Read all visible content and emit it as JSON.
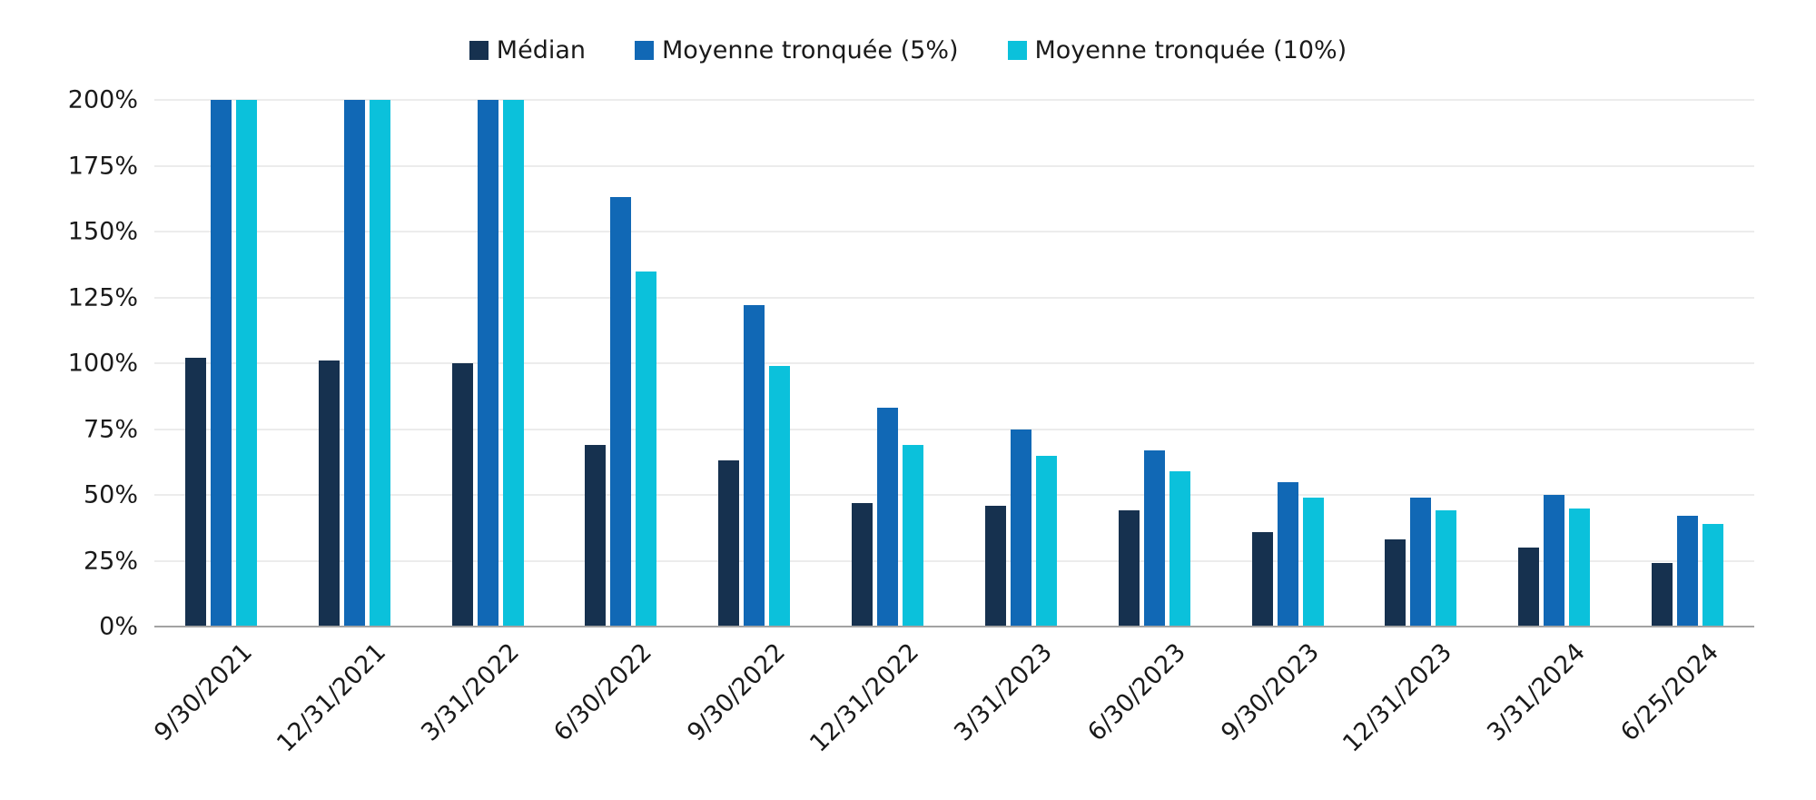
{
  "chart_data": {
    "type": "bar",
    "title": "",
    "xlabel": "",
    "ylabel": "",
    "ylim": [
      0,
      200
    ],
    "yticks": [
      0,
      25,
      50,
      75,
      100,
      125,
      150,
      175,
      200
    ],
    "ytick_suffix": "%",
    "grid": true,
    "legend_position": "top",
    "categories": [
      "9/30/2021",
      "12/31/2021",
      "3/31/2022",
      "6/30/2022",
      "9/30/2022",
      "12/31/2022",
      "3/31/2023",
      "6/30/2023",
      "9/30/2023",
      "12/31/2023",
      "3/31/2024",
      "6/25/2024"
    ],
    "series": [
      {
        "name": "Médian",
        "slug": "median",
        "color": "#16314F",
        "values": [
          102,
          101,
          100,
          69,
          63,
          47,
          46,
          44,
          36,
          33,
          30,
          24
        ]
      },
      {
        "name": "Moyenne tronquée (5%)",
        "slug": "moyenne-tronquee-5",
        "color": "#1168B5",
        "values": [
          200,
          200,
          200,
          163,
          122,
          83,
          75,
          67,
          55,
          49,
          50,
          42
        ]
      },
      {
        "name": "Moyenne tronquée (10%)",
        "slug": "moyenne-tronquee-10",
        "color": "#0BC1DB",
        "values": [
          200,
          200,
          200,
          135,
          99,
          69,
          65,
          59,
          49,
          44,
          45,
          39
        ]
      }
    ]
  },
  "colors": {
    "background": "#FFFFFF",
    "gridline": "#D9D9D9",
    "axis_line": "#A3A3A3",
    "text": "#1A1A1A"
  }
}
